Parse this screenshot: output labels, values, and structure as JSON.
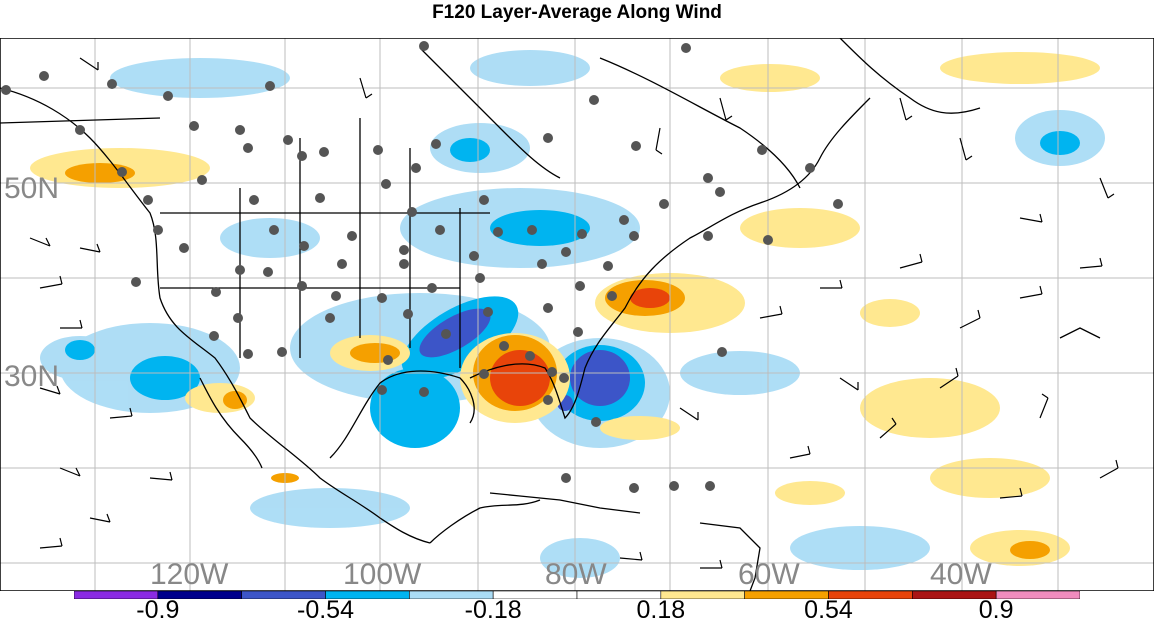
{
  "title": "F120 Layer-Average Along Wind",
  "map": {
    "lat_labels": [
      "50N",
      "30N"
    ],
    "lon_labels": [
      "120W",
      "100W",
      "80W",
      "60W",
      "40W"
    ],
    "label_color": "#888888",
    "grid_color": "#bdbdbd",
    "land_border_color": "#000000",
    "station_color": "#555555"
  },
  "colorbar": {
    "colors": [
      "#8a2be2",
      "#00008b",
      "#3c55c8",
      "#00b4f0",
      "#aadcf5",
      "#ffffff",
      "#ffffff",
      "#ffe890",
      "#f5a000",
      "#e8440a",
      "#aa1414",
      "#f08cbe"
    ],
    "tick_labels": [
      "-0.9",
      "-0.54",
      "-0.18",
      "0.18",
      "0.54",
      "0.9"
    ]
  }
}
